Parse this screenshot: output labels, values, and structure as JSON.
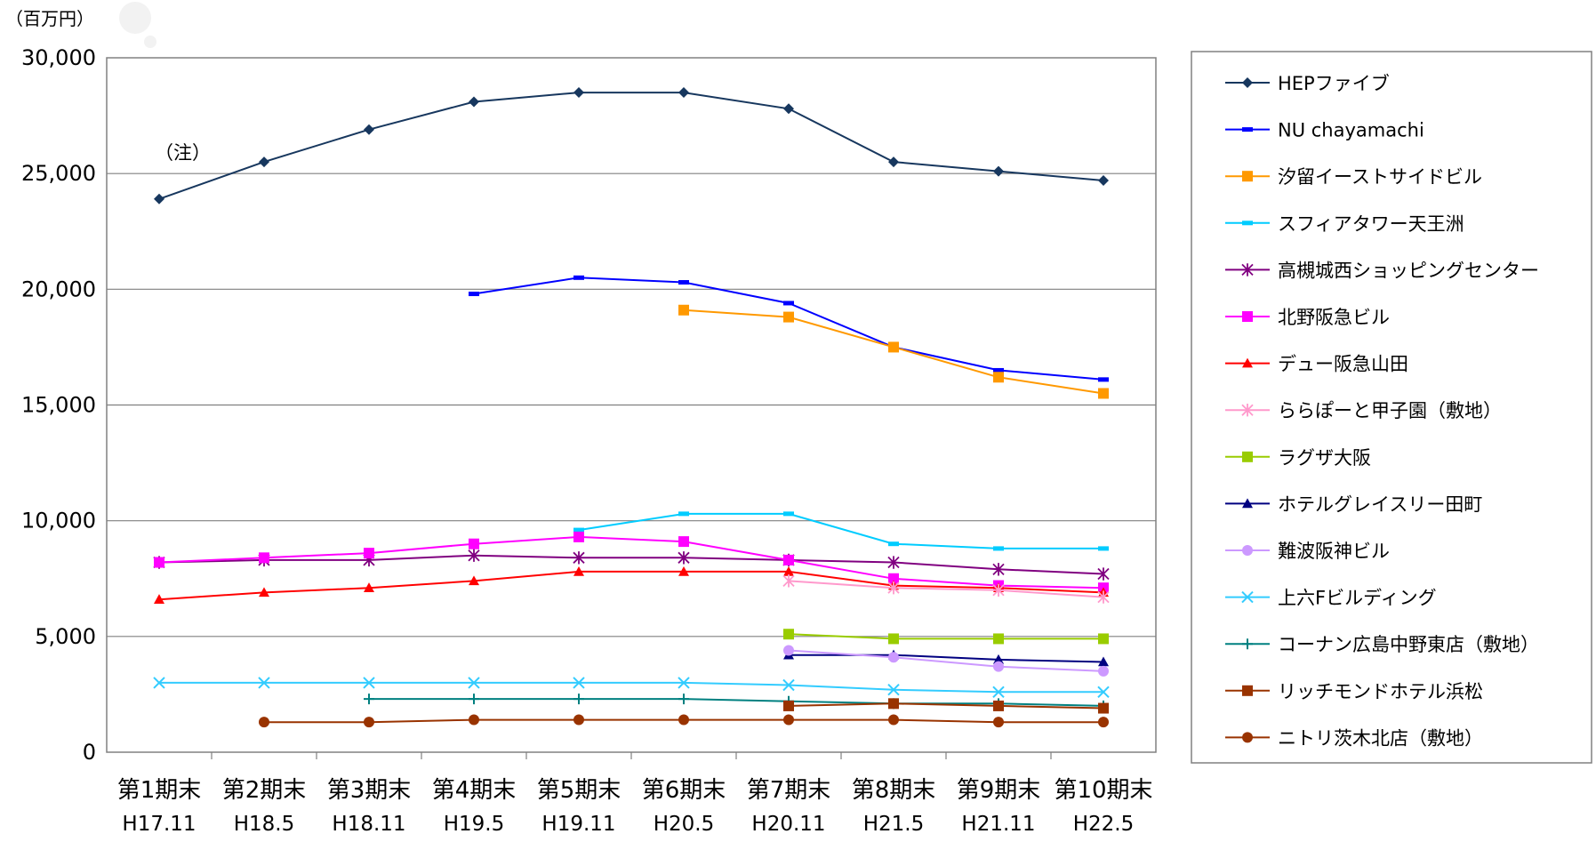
{
  "chart_data": {
    "type": "line",
    "unit_label": "（百万円）",
    "annotation": "（注）",
    "ylim": [
      0,
      30000
    ],
    "y_ticks": [
      "0",
      "5,000",
      "10,000",
      "15,000",
      "20,000",
      "25,000",
      "30,000"
    ],
    "y_tick_values": [
      0,
      5000,
      10000,
      15000,
      20000,
      25000,
      30000
    ],
    "categories": [
      "第1期末",
      "第2期末",
      "第3期末",
      "第4期末",
      "第5期末",
      "第6期末",
      "第7期末",
      "第8期末",
      "第9期末",
      "第10期末"
    ],
    "categories_sub": [
      "H17.11",
      "H18.5",
      "H18.11",
      "H19.5",
      "H19.11",
      "H20.5",
      "H20.11",
      "H21.5",
      "H21.11",
      "H22.5"
    ],
    "grid": "horizontal",
    "legend_position": "right",
    "series": [
      {
        "name": "HEPファイブ",
        "color": "#17375e",
        "marker": "diamond",
        "values": [
          23900,
          25500,
          26900,
          28100,
          28500,
          28500,
          27800,
          25500,
          25100,
          24700
        ]
      },
      {
        "name": "NU chayamachi",
        "color": "#0000ff",
        "marker": "dash",
        "values": [
          null,
          null,
          null,
          19800,
          20500,
          20300,
          19400,
          17500,
          16500,
          16100
        ]
      },
      {
        "name": "汐留イーストサイドビル",
        "color": "#ff9900",
        "marker": "square",
        "values": [
          null,
          null,
          null,
          null,
          null,
          19100,
          18800,
          17500,
          16200,
          15500
        ]
      },
      {
        "name": "スフィアタワー天王洲",
        "color": "#00ccff",
        "marker": "dash",
        "values": [
          null,
          null,
          null,
          null,
          9600,
          10300,
          10300,
          9000,
          8800,
          8800
        ]
      },
      {
        "name": "高槻城西ショッピングセンター",
        "color": "#800080",
        "marker": "star",
        "values": [
          8200,
          8300,
          8300,
          8500,
          8400,
          8400,
          8300,
          8200,
          7900,
          7700
        ]
      },
      {
        "name": "北野阪急ビル",
        "color": "#ff00ff",
        "marker": "square",
        "values": [
          8200,
          8400,
          8600,
          9000,
          9300,
          9100,
          8300,
          7500,
          7200,
          7100
        ]
      },
      {
        "name": "デュー阪急山田",
        "color": "#ff0000",
        "marker": "triangle",
        "values": [
          6600,
          6900,
          7100,
          7400,
          7800,
          7800,
          7800,
          7200,
          7100,
          6900
        ]
      },
      {
        "name": "ららぽーと甲子園（敷地）",
        "color": "#ff99cc",
        "marker": "star",
        "values": [
          null,
          null,
          null,
          null,
          null,
          null,
          7400,
          7100,
          7000,
          6700
        ]
      },
      {
        "name": "ラグザ大阪",
        "color": "#99cc00",
        "marker": "square",
        "values": [
          null,
          null,
          null,
          null,
          null,
          null,
          5100,
          4900,
          4900,
          4900
        ]
      },
      {
        "name": "ホテルグレイスリー田町",
        "color": "#000080",
        "marker": "triangle",
        "values": [
          null,
          null,
          null,
          null,
          null,
          null,
          4200,
          4200,
          4000,
          3900
        ]
      },
      {
        "name": "難波阪神ビル",
        "color": "#cc99ff",
        "marker": "circle",
        "values": [
          null,
          null,
          null,
          null,
          null,
          null,
          4400,
          4100,
          3700,
          3500
        ]
      },
      {
        "name": "上六Fビルディング",
        "color": "#33ccff",
        "marker": "x",
        "values": [
          3000,
          3000,
          3000,
          3000,
          3000,
          3000,
          2900,
          2700,
          2600,
          2600
        ]
      },
      {
        "name": "コーナン広島中野東店（敷地）",
        "color": "#008080",
        "marker": "plus",
        "values": [
          null,
          null,
          2300,
          2300,
          2300,
          2300,
          2200,
          2100,
          2100,
          2000
        ]
      },
      {
        "name": "リッチモンドホテル浜松",
        "color": "#993300",
        "marker": "square",
        "values": [
          null,
          null,
          null,
          null,
          null,
          null,
          2000,
          2100,
          2000,
          1900
        ]
      },
      {
        "name": "ニトリ茨木北店（敷地）",
        "color": "#993300",
        "marker": "circle",
        "values": [
          null,
          1300,
          1300,
          1400,
          1400,
          1400,
          1400,
          1400,
          1300,
          1300
        ]
      }
    ]
  }
}
